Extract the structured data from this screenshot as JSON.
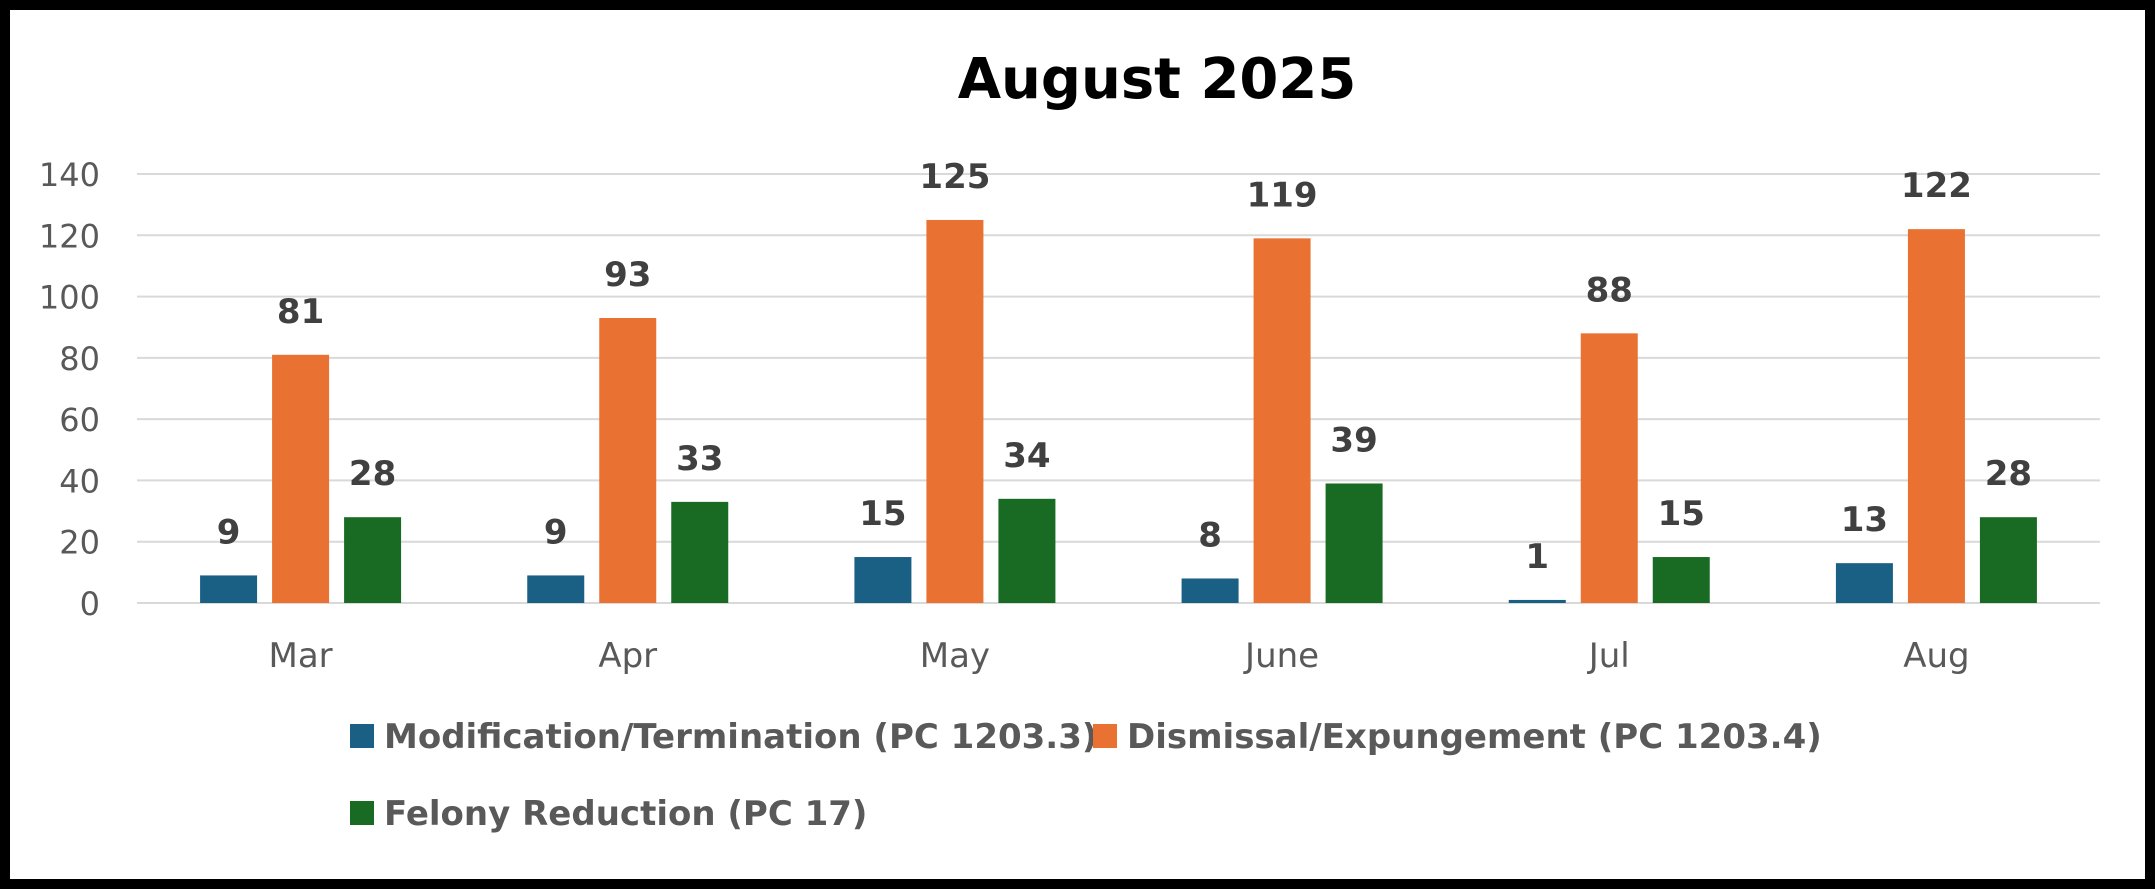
{
  "chart_data": {
    "type": "bar",
    "title": "August  2025",
    "xlabel": "",
    "ylabel": "",
    "ylim": [
      0,
      140
    ],
    "yticks": [
      0,
      20,
      40,
      60,
      80,
      100,
      120,
      140
    ],
    "grid": true,
    "legend_position": "bottom",
    "categories": [
      "Mar",
      "Apr",
      "May",
      "June",
      "Jul",
      "Aug"
    ],
    "series": [
      {
        "name": "Modification/Termination (PC 1203.3)",
        "color": "#1a5f84",
        "values": [
          9,
          9,
          15,
          8,
          1,
          13
        ]
      },
      {
        "name": "Dismissal/Expungement (PC 1203.4)",
        "color": "#e97132",
        "values": [
          81,
          93,
          125,
          119,
          88,
          122
        ]
      },
      {
        "name": "Felony Reduction (PC 17)",
        "color": "#196b24",
        "values": [
          28,
          33,
          34,
          39,
          15,
          28
        ]
      }
    ]
  }
}
